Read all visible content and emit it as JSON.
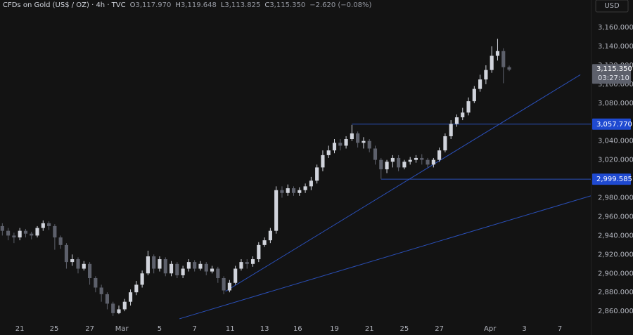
{
  "chart_data": {
    "type": "candlestick",
    "title": "CFDs on Gold (US$ / OZ) · 4h · TVC",
    "ohlc_legend": [
      {
        "label": "O",
        "value": "3,117.970"
      },
      {
        "label": "H",
        "value": "3,119.648"
      },
      {
        "label": "L",
        "value": "3,113.825"
      },
      {
        "label": "C",
        "value": "3,115.350"
      }
    ],
    "change": "−2.620 (−0.08%)",
    "currency": "USD",
    "x": [
      0,
      1,
      2,
      3,
      4,
      5,
      6,
      7,
      8,
      9,
      10,
      11,
      12,
      13,
      14,
      15,
      16,
      17,
      18,
      19,
      20,
      21,
      22,
      23,
      24,
      25,
      26,
      27,
      28,
      29,
      30,
      31,
      32,
      33,
      34,
      35,
      36,
      37,
      38,
      39,
      40,
      41,
      42,
      43,
      44,
      45,
      46,
      47,
      48,
      49,
      50,
      51,
      52,
      53,
      54,
      55,
      56,
      57,
      58,
      59,
      60,
      61,
      62,
      63,
      64,
      65,
      66,
      67,
      68,
      69,
      70,
      71,
      72,
      73,
      74,
      75,
      76,
      77,
      78,
      79,
      80,
      81,
      82,
      83,
      84,
      85,
      86,
      87
    ],
    "open": [
      2950,
      2945,
      2940,
      2938,
      2945,
      2942,
      2940,
      2948,
      2953,
      2950,
      2938,
      2930,
      2912,
      2915,
      2905,
      2910,
      2895,
      2885,
      2878,
      2868,
      2858,
      2862,
      2870,
      2880,
      2888,
      2900,
      2918,
      2905,
      2915,
      2900,
      2910,
      2898,
      2905,
      2912,
      2905,
      2910,
      2902,
      2905,
      2895,
      2882,
      2890,
      2905,
      2912,
      2910,
      2915,
      2930,
      2935,
      2945,
      2988,
      2985,
      2990,
      2985,
      2988,
      2992,
      2998,
      3012,
      3025,
      3030,
      3038,
      3035,
      3042,
      3048,
      3038,
      3040,
      3032,
      3020,
      3010,
      3018,
      3022,
      3012,
      3018,
      3020,
      3022,
      3020,
      3015,
      3020,
      3030,
      3045,
      3058,
      3065,
      3070,
      3082,
      3095,
      3105,
      3115,
      3130,
      3135,
      3117.97
    ],
    "high": [
      2953,
      2948,
      2943,
      2948,
      2947,
      2944,
      2950,
      2956,
      2955,
      2952,
      2940,
      2932,
      2920,
      2917,
      2913,
      2912,
      2897,
      2888,
      2880,
      2870,
      2866,
      2873,
      2883,
      2892,
      2903,
      2924,
      2920,
      2918,
      2917,
      2913,
      2912,
      2908,
      2915,
      2914,
      2913,
      2912,
      2908,
      2907,
      2897,
      2893,
      2908,
      2915,
      2915,
      2918,
      2933,
      2938,
      2948,
      2992,
      2992,
      2994,
      2992,
      2991,
      2995,
      3002,
      3015,
      3030,
      3035,
      3042,
      3042,
      3045,
      3057,
      3050,
      3044,
      3042,
      3035,
      3022,
      3020,
      3025,
      3025,
      3020,
      3023,
      3025,
      3026,
      3022,
      3022,
      3033,
      3048,
      3062,
      3068,
      3075,
      3086,
      3098,
      3110,
      3120,
      3140,
      3148,
      3138,
      3119.648
    ],
    "low": [
      2940,
      2935,
      2932,
      2935,
      2938,
      2936,
      2938,
      2945,
      2946,
      2925,
      2926,
      2905,
      2908,
      2900,
      2903,
      2888,
      2880,
      2870,
      2862,
      2855,
      2857,
      2860,
      2866,
      2877,
      2885,
      2898,
      2900,
      2902,
      2897,
      2897,
      2895,
      2895,
      2902,
      2902,
      2903,
      2898,
      2900,
      2890,
      2878,
      2880,
      2888,
      2903,
      2905,
      2907,
      2912,
      2928,
      2932,
      2942,
      2980,
      2982,
      2982,
      2982,
      2985,
      2988,
      2995,
      3008,
      3022,
      3027,
      3030,
      3032,
      3040,
      3033,
      3032,
      3028,
      3015,
      3000,
      3006,
      3012,
      3008,
      3010,
      3015,
      3017,
      3015,
      3012,
      3012,
      3018,
      3028,
      3042,
      3055,
      3062,
      3067,
      3080,
      3092,
      3100,
      3112,
      3125,
      3101,
      3113.825
    ],
    "close": [
      2945,
      2940,
      2938,
      2945,
      2942,
      2940,
      2948,
      2953,
      2950,
      2938,
      2930,
      2912,
      2915,
      2905,
      2910,
      2895,
      2885,
      2878,
      2868,
      2858,
      2862,
      2870,
      2880,
      2888,
      2900,
      2918,
      2905,
      2915,
      2900,
      2910,
      2898,
      2905,
      2912,
      2905,
      2910,
      2902,
      2905,
      2895,
      2882,
      2890,
      2905,
      2912,
      2910,
      2915,
      2930,
      2935,
      2945,
      2988,
      2985,
      2990,
      2985,
      2988,
      2992,
      2998,
      3012,
      3025,
      3030,
      3038,
      3035,
      3042,
      3048,
      3038,
      3040,
      3032,
      3020,
      3010,
      3018,
      3022,
      3012,
      3018,
      3020,
      3022,
      3020,
      3015,
      3020,
      3030,
      3045,
      3058,
      3065,
      3070,
      3082,
      3095,
      3105,
      3115,
      3130,
      3135,
      3118,
      3115.35
    ],
    "up_color": "#d1d4dc",
    "down_color": "#5d606b",
    "xlim": [
      -0.4,
      101
    ],
    "ylim": [
      2846,
      3189
    ],
    "xticks": [
      {
        "value": 3,
        "label": "21"
      },
      {
        "value": 8.9,
        "label": "25"
      },
      {
        "value": 15,
        "label": "27"
      },
      {
        "value": 20.5,
        "label": "Mar"
      },
      {
        "value": 27,
        "label": "5"
      },
      {
        "value": 33,
        "label": "7"
      },
      {
        "value": 39.1,
        "label": "11"
      },
      {
        "value": 45,
        "label": "13"
      },
      {
        "value": 50.7,
        "label": "16"
      },
      {
        "value": 57,
        "label": "19"
      },
      {
        "value": 63,
        "label": "21"
      },
      {
        "value": 69,
        "label": "25"
      },
      {
        "value": 75,
        "label": "27"
      },
      {
        "value": 83.7,
        "label": "Apr"
      },
      {
        "value": 89.6,
        "label": "3"
      },
      {
        "value": 95.7,
        "label": "7"
      }
    ],
    "yticks": [
      {
        "value": 2860,
        "label": "2,860.000"
      },
      {
        "value": 2880,
        "label": "2,880.000"
      },
      {
        "value": 2900,
        "label": "2,900.000"
      },
      {
        "value": 2920,
        "label": "2,920.000"
      },
      {
        "value": 2940,
        "label": "2,940.000"
      },
      {
        "value": 2960,
        "label": "2,960.000"
      },
      {
        "value": 2980,
        "label": "2,980.000"
      },
      {
        "value": 3020,
        "label": "3,020.000"
      },
      {
        "value": 3040,
        "label": "3,040.000"
      },
      {
        "value": 3080,
        "label": "3,080.000"
      },
      {
        "value": 3100,
        "label": "3,100.000"
      },
      {
        "value": 3120,
        "label": "3,120.000"
      },
      {
        "value": 3140,
        "label": "3,140.000"
      },
      {
        "value": 3160,
        "label": "3,160.000"
      }
    ],
    "grid": false,
    "lines": [
      {
        "x": [
          38.3,
          99.2
        ],
        "y": [
          2881,
          3110
        ]
      },
      {
        "x": [
          30.4,
          101
        ],
        "y": [
          2852,
          2982
        ]
      },
      {
        "x": [
          60,
          101
        ],
        "y": [
          3057.77,
          3057.77
        ]
      },
      {
        "x": [
          65,
          101
        ],
        "y": [
          2999.585,
          2999.585
        ]
      }
    ],
    "line_color": "#2a4fb8",
    "levels": [
      {
        "value": 3057.77,
        "label": "3,057.770"
      },
      {
        "value": 2999.585,
        "label": "2,999.585"
      }
    ],
    "level_color": "#1f4ad1",
    "last_price": {
      "value": 3115.35,
      "label": "3,115.350"
    },
    "countdown": "03:27:10",
    "last_price_color": "#5d606b"
  }
}
